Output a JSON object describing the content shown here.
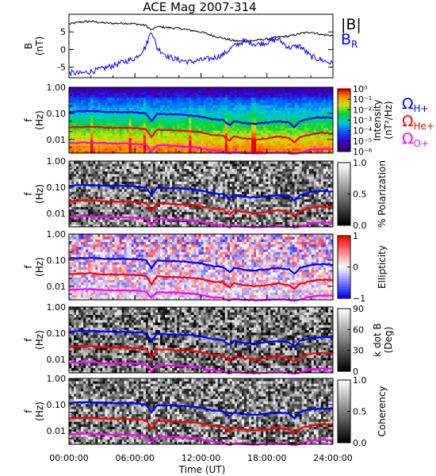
{
  "chart_data": [
    {
      "type": "line",
      "title": "ACE Mag 2007-314",
      "ylabel": "B",
      "yunit": "(nT)",
      "ylim": [
        -8,
        10
      ],
      "yticks": [
        -5,
        0,
        5
      ],
      "series": [
        {
          "name": "|B|",
          "color": "#000000",
          "x": [
            0,
            1,
            2,
            3,
            4,
            5,
            6,
            7,
            7.5,
            8,
            9,
            10,
            11,
            12,
            13,
            14,
            15,
            16,
            17,
            18,
            19,
            20,
            21,
            22,
            23,
            24
          ],
          "values": [
            7.2,
            7.8,
            8.0,
            7.6,
            7.4,
            7.5,
            7.3,
            6.8,
            5.5,
            6.5,
            6.2,
            6.0,
            5.5,
            5.0,
            4.0,
            3.2,
            2.5,
            2.3,
            2.6,
            3.0,
            3.5,
            3.8,
            4.5,
            5.0,
            4.2,
            4.0
          ]
        },
        {
          "name": "BR",
          "color": "#0000ff",
          "x": [
            0,
            1,
            2,
            3,
            4,
            5,
            6,
            6.5,
            7,
            7.5,
            8,
            9,
            10,
            11,
            12,
            13,
            14,
            15,
            16,
            17,
            18,
            19,
            20,
            21,
            22,
            23,
            24
          ],
          "values": [
            -6.5,
            -6.8,
            -6.2,
            -5.5,
            -4.5,
            -3.5,
            -2.5,
            -1.0,
            1.0,
            5.5,
            0.5,
            -2.0,
            -3.0,
            -3.5,
            -3.0,
            -2.5,
            -1.5,
            1.0,
            2.5,
            1.5,
            2.0,
            3.0,
            0.5,
            1.0,
            -2.0,
            -3.0,
            -4.0
          ]
        }
      ]
    },
    {
      "type": "heatmap",
      "ylabel": "f",
      "yunit": "(Hz)",
      "yscale": "log",
      "ylim": [
        0.003,
        1.0
      ],
      "ytick_labels": [
        "1.00",
        "0.10",
        "0.01"
      ],
      "colorbar": {
        "label": "Intensity",
        "unit": "(nT²/Hz)",
        "scale": "log",
        "range": [
          1e-06,
          1
        ],
        "tick_labels": [
          "10⁰",
          "10⁻¹",
          "10⁻²",
          "10⁻³",
          "10⁻⁴",
          "10⁻⁵",
          "10⁻⁶"
        ],
        "colormap": "rainbow"
      },
      "legend": [
        {
          "name": "ΩH+",
          "color": "#0000ff"
        },
        {
          "name": "ΩHe+",
          "color": "#ff0000"
        },
        {
          "name": "ΩO+",
          "color": "#ff00ff"
        }
      ]
    },
    {
      "type": "heatmap",
      "ylabel": "f",
      "yunit": "(Hz)",
      "yscale": "log",
      "ylim": [
        0.003,
        1.0
      ],
      "ytick_labels": [
        "1.00",
        "0.10",
        "0.01"
      ],
      "colorbar": {
        "label": "% Polarization",
        "range": [
          0,
          1
        ],
        "tick_labels": [
          "1.0",
          "0.5",
          "0.0"
        ],
        "colormap": "gray"
      }
    },
    {
      "type": "heatmap",
      "ylabel": "f",
      "yunit": "(Hz)",
      "yscale": "log",
      "ylim": [
        0.003,
        1.0
      ],
      "ytick_labels": [
        "1.00",
        "0.10",
        "0.01"
      ],
      "colorbar": {
        "label": "Ellipticity",
        "range": [
          -1,
          1
        ],
        "tick_labels": [
          "1",
          "0",
          "−1"
        ],
        "colormap": "blue-white-red"
      }
    },
    {
      "type": "heatmap",
      "ylabel": "f",
      "yunit": "(Hz)",
      "yscale": "log",
      "ylim": [
        0.003,
        1.0
      ],
      "ytick_labels": [
        "1.00",
        "0.10",
        "0.01"
      ],
      "colorbar": {
        "label": "k dot B",
        "unit": "(Deg)",
        "range": [
          0,
          90
        ],
        "tick_labels": [
          "90",
          "60",
          "30",
          "0"
        ],
        "colormap": "gray"
      }
    },
    {
      "type": "heatmap",
      "ylabel": "f",
      "yunit": "(Hz)",
      "yscale": "log",
      "ylim": [
        0.003,
        1.0
      ],
      "ytick_labels": [
        "1.00",
        "0.10",
        "0.01"
      ],
      "colorbar": {
        "label": "Coherency",
        "range": [
          0,
          1
        ],
        "tick_labels": [
          "1.0",
          "0.5",
          "0.0"
        ],
        "colormap": "gray"
      },
      "xlabel": "Time (UT)",
      "xlim": [
        0,
        24
      ],
      "xtick_labels": [
        "00:00:00",
        "06:00:00",
        "12:00:00",
        "18:00:00",
        "24:00:00"
      ]
    }
  ],
  "cyclotron_lines": {
    "x": [
      0,
      1,
      2,
      3,
      4,
      5,
      6,
      7,
      7.5,
      8,
      9,
      10,
      11,
      12,
      13,
      14,
      14.6,
      15,
      16,
      17,
      18,
      19,
      20,
      20.5,
      21,
      22,
      23,
      24
    ],
    "H+": [
      0.115,
      0.12,
      0.122,
      0.115,
      0.112,
      0.113,
      0.11,
      0.1,
      0.05,
      0.095,
      0.092,
      0.09,
      0.085,
      0.075,
      0.06,
      0.055,
      0.035,
      0.05,
      0.042,
      0.04,
      0.045,
      0.05,
      0.045,
      0.03,
      0.05,
      0.065,
      0.07,
      0.068
    ],
    "He+": [
      0.029,
      0.03,
      0.031,
      0.029,
      0.028,
      0.028,
      0.027,
      0.025,
      0.012,
      0.024,
      0.023,
      0.022,
      0.021,
      0.019,
      0.015,
      0.014,
      0.009,
      0.013,
      0.011,
      0.01,
      0.011,
      0.013,
      0.011,
      0.008,
      0.012,
      0.016,
      0.018,
      0.017
    ],
    "O+": [
      0.0072,
      0.0075,
      0.0077,
      0.0072,
      0.007,
      0.007,
      0.0068,
      0.0063,
      0.0035,
      0.006,
      0.0058,
      0.0056,
      0.0053,
      0.0047,
      0.0038,
      0.0035,
      0.0028,
      0.0033,
      0.003,
      0.0029,
      0.003,
      0.0032,
      0.003,
      0.0028,
      0.0031,
      0.0041,
      0.0044,
      0.0043
    ]
  },
  "colors": {
    "blue": "#0000ff",
    "red": "#ff0000",
    "magenta": "#ff00ff",
    "black": "#000000"
  }
}
